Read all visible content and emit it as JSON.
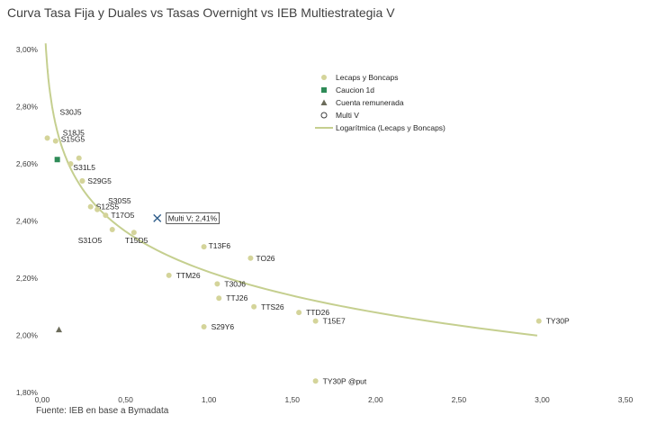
{
  "title": "Curva Tasa Fija y Duales vs Tasas Overnight  vs IEB Multiestrategia V",
  "source": "Fuente: IEB en base a Bymadata",
  "colors": {
    "lecaps": "#d4d49a",
    "caucion": "#2e8b57",
    "cuenta": "#6b6b5a",
    "multi": "#2f5d8a",
    "curve": "#c5cf8f"
  },
  "chart_data": {
    "type": "scatter",
    "xlim": [
      0,
      3.5
    ],
    "ylim": [
      1.8,
      3.0
    ],
    "x_ticks": [
      "0,00",
      "0,50",
      "1,00",
      "1,50",
      "2,00",
      "2,50",
      "3,00",
      "3,50"
    ],
    "y_ticks": [
      "1,80%",
      "2,00%",
      "2,20%",
      "2,40%",
      "2,60%",
      "2,80%",
      "3,00%"
    ],
    "legend": [
      {
        "name": "Lecaps y Boncaps",
        "marker": "circle"
      },
      {
        "name": "Caucion 1d",
        "marker": "square"
      },
      {
        "name": "Cuenta remunerada",
        "marker": "triangle"
      },
      {
        "name": "Multi V",
        "marker": "open-circle"
      },
      {
        "name": "Logarítmica (Lecaps y Boncaps)",
        "marker": "line"
      }
    ],
    "lecaps": [
      {
        "label": "S30J5",
        "x": 0.03,
        "y": 2.69
      },
      {
        "label": "S18J5",
        "x": 0.08,
        "y": 2.68
      },
      {
        "label": "S15G5",
        "x": 0.22,
        "y": 2.62
      },
      {
        "label": "",
        "x": 0.17,
        "y": 2.6
      },
      {
        "label": "S31L5",
        "x": 0.24,
        "y": 2.54
      },
      {
        "label": "S29G5",
        "x": 0.24,
        "y": 2.54
      },
      {
        "label": "S12S5",
        "x": 0.29,
        "y": 2.45
      },
      {
        "label": "S30S5",
        "x": 0.33,
        "y": 2.44
      },
      {
        "label": "T17O5",
        "x": 0.38,
        "y": 2.42
      },
      {
        "label": "S31O5",
        "x": 0.42,
        "y": 2.37
      },
      {
        "label": "T15D5",
        "x": 0.55,
        "y": 2.36
      },
      {
        "label": "T13F6",
        "x": 0.97,
        "y": 2.31
      },
      {
        "label": "TO26",
        "x": 1.25,
        "y": 2.27
      },
      {
        "label": "TTM26",
        "x": 0.76,
        "y": 2.21
      },
      {
        "label": "T30J6",
        "x": 1.05,
        "y": 2.18
      },
      {
        "label": "TTJ26",
        "x": 1.06,
        "y": 2.13
      },
      {
        "label": "TTS26",
        "x": 1.27,
        "y": 2.1
      },
      {
        "label": "TTD26",
        "x": 1.54,
        "y": 2.08
      },
      {
        "label": "T15E7",
        "x": 1.64,
        "y": 2.05
      },
      {
        "label": "S29Y6",
        "x": 0.97,
        "y": 2.03
      },
      {
        "label": "TY30P",
        "x": 2.98,
        "y": 2.05
      },
      {
        "label": "TY30P @put",
        "x": 1.64,
        "y": 1.84
      }
    ],
    "caucion": [
      {
        "x": 0.09,
        "y": 2.615
      }
    ],
    "cuenta": [
      {
        "x": 0.1,
        "y": 2.02
      }
    ],
    "multi": [
      {
        "label": "Multi V; 2,41%",
        "x": 0.69,
        "y": 2.41
      }
    ],
    "trendline": {
      "type": "log",
      "a": 2.2218,
      "b": -0.2044,
      "x_range": [
        0.02,
        2.97
      ]
    }
  }
}
